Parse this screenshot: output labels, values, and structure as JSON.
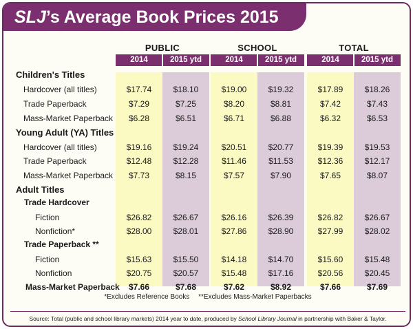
{
  "title": {
    "italic": "SLJ",
    "rest": "’s Average Book Prices 2015"
  },
  "chart_data": {
    "type": "table",
    "groups": [
      {
        "name": "PUBLIC",
        "years": [
          "2014",
          "2015 ytd"
        ]
      },
      {
        "name": "SCHOOL",
        "years": [
          "2014",
          "2015 ytd"
        ]
      },
      {
        "name": "TOTAL",
        "years": [
          "2014",
          "2015 ytd"
        ]
      }
    ],
    "sections": [
      {
        "title": "Children's Titles",
        "rows": [
          {
            "label": "Hardcover (all titles)",
            "values": [
              "$17.74",
              "$18.10",
              "$19.00",
              "$19.32",
              "$17.89",
              "$18.26"
            ]
          },
          {
            "label": "Trade Paperback",
            "values": [
              "$7.29",
              "$7.25",
              "$8.20",
              "$8.81",
              "$7.42",
              "$7.43"
            ]
          },
          {
            "label": "Mass-Market Paperback",
            "values": [
              "$6.28",
              "$6.51",
              "$6.71",
              "$6.88",
              "$6.32",
              "$6.53"
            ]
          }
        ]
      },
      {
        "title": "Young Adult (YA) Titles",
        "rows": [
          {
            "label": "Hardcover (all titles)",
            "values": [
              "$19.16",
              "$19.24",
              "$20.51",
              "$20.77",
              "$19.39",
              "$19.53"
            ]
          },
          {
            "label": "Trade Paperback",
            "values": [
              "$12.48",
              "$12.28",
              "$11.46",
              "$11.53",
              "$12.36",
              "$12.17"
            ]
          },
          {
            "label": "Mass-Market Paperback",
            "values": [
              "$7.73",
              "$8.15",
              "$7.57",
              "$7.90",
              "$7.65",
              "$8.07"
            ]
          }
        ]
      },
      {
        "title": "Adult Titles",
        "subsections": [
          {
            "title": "Trade Hardcover",
            "rows": [
              {
                "label": "Fiction",
                "values": [
                  "$26.82",
                  "$26.67",
                  "$26.16",
                  "$26.39",
                  "$26.82",
                  "$26.67"
                ]
              },
              {
                "label": "Nonfiction*",
                "values": [
                  "$28.00",
                  "$28.01",
                  "$27.86",
                  "$28.90",
                  "$27.99",
                  "$28.02"
                ]
              }
            ]
          },
          {
            "title": "Trade Paperback **",
            "rows": [
              {
                "label": "Fiction",
                "values": [
                  "$15.63",
                  "$15.50",
                  "$14.18",
                  "$14.70",
                  "$15.60",
                  "$15.48"
                ]
              },
              {
                "label": "Nonfiction",
                "values": [
                  "$20.75",
                  "$20.57",
                  "$15.48",
                  "$17.16",
                  "$20.56",
                  "$20.45"
                ]
              }
            ]
          }
        ],
        "rows": [
          {
            "label": "Mass-Market Paperback",
            "values": [
              "$7.66",
              "$7.68",
              "$7.62",
              "$8.92",
              "$7.66",
              "$7.69"
            ]
          }
        ]
      }
    ]
  },
  "footnotes": [
    "*Excludes Reference Books",
    "**Excludes Mass-Market Paperbacks"
  ],
  "source": {
    "before": "Source: Total (public and school library markets) 2014 year to date, produced by ",
    "italic": "School Library Journal",
    "after": " in partnership with Baker & Taylor."
  },
  "colors": {
    "accent": "#7b2f6e",
    "col_2014": "#fafac2",
    "col_2015": "#dccbd9"
  }
}
